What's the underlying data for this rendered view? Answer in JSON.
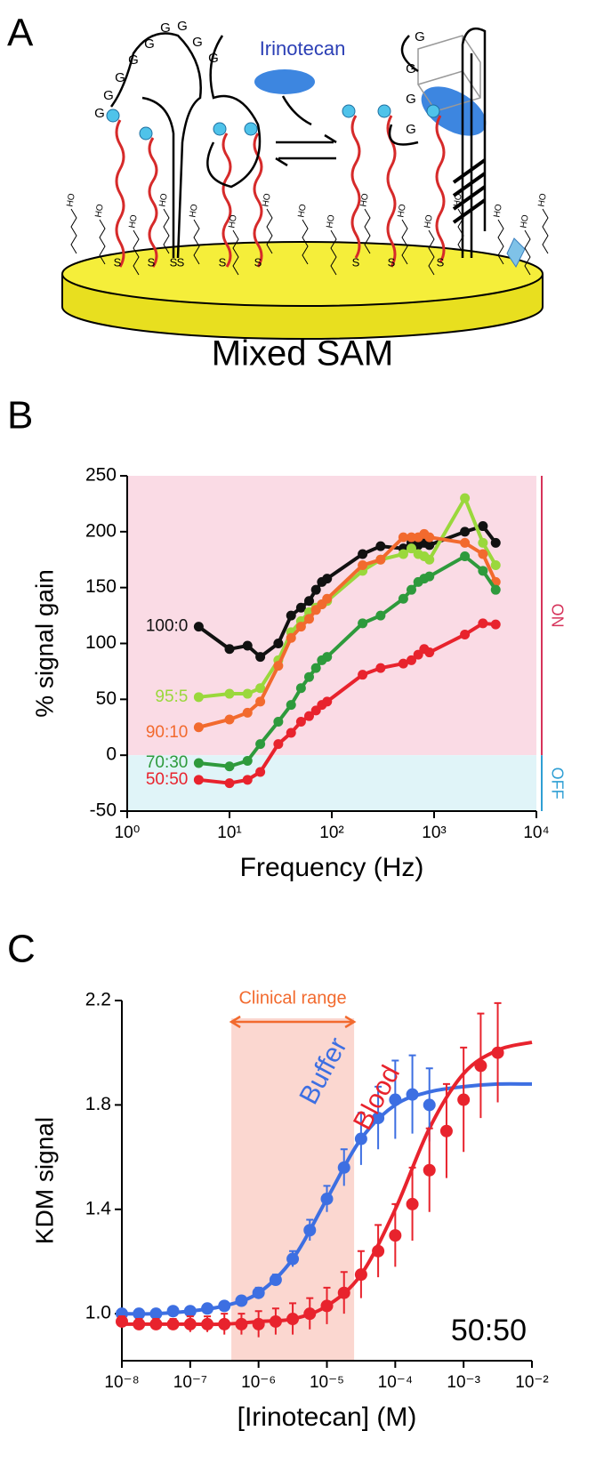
{
  "panel_a": {
    "panel_label": "A",
    "molecule": "Irinotecan",
    "caption": "Mixed SAM",
    "g_labels": [
      "G",
      "G",
      "G",
      "G",
      "G",
      "G",
      "G",
      "G",
      "G",
      "G",
      "G",
      "G",
      "G"
    ],
    "ho_labels": [
      "HO",
      "HO",
      "HO",
      "HO",
      "HO",
      "HO",
      "HO",
      "HO",
      "HO",
      "HO",
      "HO",
      "HO",
      "HO",
      "HO",
      "HO",
      "HO"
    ],
    "s_labels": [
      "S",
      "S",
      "S",
      "S",
      "S",
      "S",
      "S",
      "S",
      "S"
    ]
  },
  "chart_data": [
    {
      "type": "line",
      "panel_label": "B",
      "xlabel": "Frequency (Hz)",
      "ylabel": "% signal gain",
      "xscale": "log",
      "xlim": [
        1,
        10000
      ],
      "xticks": [
        {
          "value": 1,
          "label": "10⁰"
        },
        {
          "value": 10,
          "label": "10¹"
        },
        {
          "value": 100,
          "label": "10²"
        },
        {
          "value": 1000,
          "label": "10³"
        },
        {
          "value": 10000,
          "label": "10⁴"
        }
      ],
      "ylim": [
        -50,
        250
      ],
      "yticks": [
        -50,
        0,
        50,
        100,
        150,
        200,
        250
      ],
      "regions": [
        {
          "label": "ON",
          "from": 0,
          "to": 250,
          "color": "#fadbe5",
          "label_color": "#d6335a"
        },
        {
          "label": "OFF",
          "from": -50,
          "to": 0,
          "color": "#e0f4f8",
          "label_color": "#2f9fd4"
        }
      ],
      "x": [
        5,
        10,
        15,
        20,
        30,
        40,
        50,
        60,
        70,
        80,
        90,
        200,
        300,
        500,
        600,
        700,
        800,
        900,
        2000,
        3000,
        4000
      ],
      "series": [
        {
          "name": "100:0",
          "color": "#111111",
          "values": [
            115,
            95,
            98,
            88,
            100,
            125,
            132,
            138,
            148,
            155,
            158,
            180,
            187,
            185,
            190,
            188,
            190,
            188,
            200,
            205,
            190
          ]
        },
        {
          "name": "95:5",
          "color": "#9ad83c",
          "values": [
            52,
            55,
            55,
            60,
            85,
            110,
            120,
            128,
            132,
            135,
            138,
            165,
            175,
            180,
            185,
            180,
            178,
            175,
            230,
            190,
            170
          ]
        },
        {
          "name": "90:10",
          "color": "#f26a2e",
          "values": [
            25,
            32,
            38,
            48,
            80,
            105,
            115,
            122,
            130,
            135,
            140,
            170,
            175,
            195,
            195,
            195,
            198,
            195,
            190,
            180,
            155
          ]
        },
        {
          "name": "70:30",
          "color": "#2e9a3c",
          "values": [
            -7,
            -10,
            -5,
            10,
            30,
            45,
            60,
            70,
            78,
            85,
            88,
            118,
            125,
            140,
            148,
            155,
            158,
            160,
            178,
            165,
            148
          ]
        },
        {
          "name": "50:50",
          "color": "#e8232d",
          "values": [
            -22,
            -25,
            -22,
            -15,
            10,
            20,
            30,
            35,
            40,
            45,
            48,
            72,
            78,
            82,
            85,
            90,
            95,
            92,
            108,
            118,
            117
          ]
        }
      ]
    },
    {
      "type": "scatter",
      "panel_label": "C",
      "xlabel": "[Irinotecan] (M)",
      "ylabel": "KDM signal",
      "xscale": "log",
      "annotation": "50:50",
      "xlim": [
        1e-08,
        0.01
      ],
      "xticks": [
        {
          "value": 1e-08,
          "label": "10⁻⁸"
        },
        {
          "value": 1e-07,
          "label": "10⁻⁷"
        },
        {
          "value": 1e-06,
          "label": "10⁻⁶"
        },
        {
          "value": 1e-05,
          "label": "10⁻⁵"
        },
        {
          "value": 0.0001,
          "label": "10⁻⁴"
        },
        {
          "value": 0.001,
          "label": "10⁻³"
        },
        {
          "value": 0.01,
          "label": "10⁻²"
        }
      ],
      "ylim": [
        0.82,
        2.2
      ],
      "yticks": [
        {
          "value": 1,
          "label": "1.0"
        },
        {
          "value": 1.4,
          "label": "1.4"
        },
        {
          "value": 1.8,
          "label": "1.8"
        },
        {
          "value": 2.2,
          "label": "2.2"
        }
      ],
      "band": {
        "label": "Clinical range",
        "from": 4e-07,
        "to": 2.5e-05,
        "color": "#f9c9c0",
        "label_color": "#f26a2e"
      },
      "series": [
        {
          "name": "Buffer",
          "color": "#3d6fe2",
          "x": [
            1e-08,
            1.78e-08,
            3.16e-08,
            5.62e-08,
            1e-07,
            1.78e-07,
            3.16e-07,
            5.62e-07,
            1e-06,
            1.78e-06,
            3.16e-06,
            5.62e-06,
            1e-05,
            1.78e-05,
            3.16e-05,
            5.62e-05,
            0.0001,
            0.000178,
            0.000316
          ],
          "values": [
            1.0,
            1.0,
            1.0,
            1.01,
            1.01,
            1.02,
            1.03,
            1.05,
            1.08,
            1.13,
            1.21,
            1.32,
            1.44,
            1.56,
            1.67,
            1.75,
            1.82,
            1.84,
            1.8
          ],
          "errors": [
            0.01,
            0.01,
            0.01,
            0.01,
            0.01,
            0.01,
            0.01,
            0.01,
            0.02,
            0.02,
            0.03,
            0.04,
            0.05,
            0.07,
            0.1,
            0.12,
            0.15,
            0.15,
            0.14
          ]
        },
        {
          "name": "Blood",
          "color": "#e8232d",
          "x": [
            1e-08,
            1.78e-08,
            3.16e-08,
            5.62e-08,
            1e-07,
            1.78e-07,
            3.16e-07,
            5.62e-07,
            1e-06,
            1.78e-06,
            3.16e-06,
            5.62e-06,
            1e-05,
            1.78e-05,
            3.16e-05,
            5.62e-05,
            0.0001,
            0.000178,
            0.000316,
            0.000562,
            0.001,
            0.00178,
            0.00316
          ],
          "values": [
            0.97,
            0.96,
            0.96,
            0.96,
            0.96,
            0.96,
            0.96,
            0.96,
            0.96,
            0.97,
            0.98,
            1.0,
            1.03,
            1.08,
            1.15,
            1.24,
            1.3,
            1.42,
            1.55,
            1.7,
            1.82,
            1.95,
            2.0
          ],
          "errors": [
            0.02,
            0.02,
            0.02,
            0.02,
            0.03,
            0.03,
            0.04,
            0.04,
            0.05,
            0.05,
            0.06,
            0.06,
            0.07,
            0.08,
            0.09,
            0.1,
            0.12,
            0.14,
            0.16,
            0.18,
            0.2,
            0.2,
            0.19
          ]
        }
      ],
      "fits": [
        {
          "color": "#3d6fe2",
          "x": [
            1e-08,
            3.16e-08,
            1e-07,
            3.16e-07,
            1e-06,
            3.16e-06,
            1e-05,
            3.16e-05,
            0.0001,
            0.000316,
            0.001,
            0.00316,
            0.01
          ],
          "values": [
            1.0,
            1.0,
            1.01,
            1.03,
            1.08,
            1.21,
            1.44,
            1.67,
            1.8,
            1.85,
            1.87,
            1.88,
            1.88
          ]
        },
        {
          "color": "#e8232d",
          "x": [
            1e-08,
            3.16e-08,
            1e-07,
            3.16e-07,
            1e-06,
            3.16e-06,
            1e-05,
            3.16e-05,
            0.0001,
            0.000316,
            0.001,
            0.00316,
            0.01
          ],
          "values": [
            0.96,
            0.96,
            0.96,
            0.96,
            0.97,
            0.98,
            1.03,
            1.15,
            1.4,
            1.71,
            1.92,
            2.01,
            2.04
          ]
        }
      ]
    }
  ]
}
